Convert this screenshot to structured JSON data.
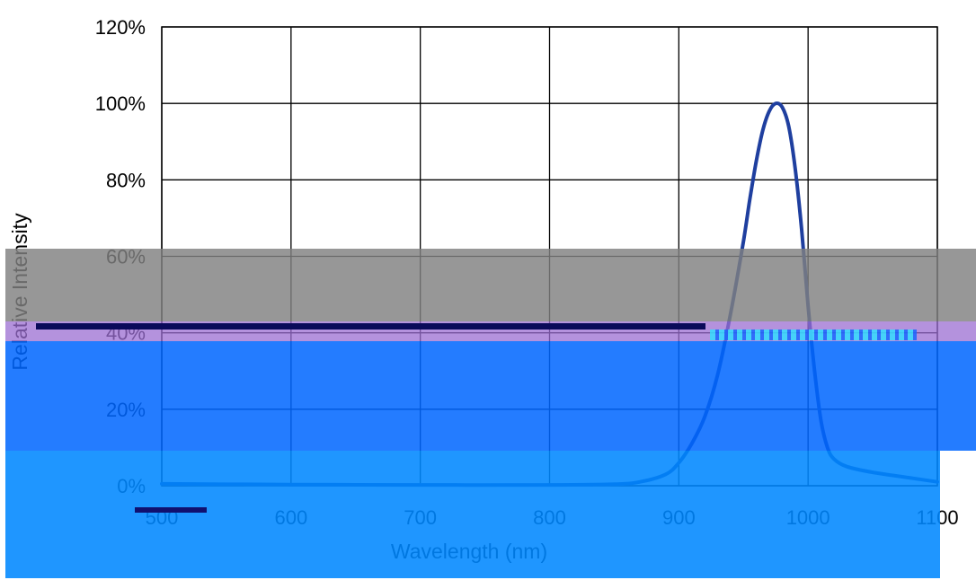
{
  "chart_data": {
    "type": "line",
    "title": "",
    "xlabel": "Wavelength (nm)",
    "ylabel": "Relative Intensity",
    "xlim": [
      500,
      1100
    ],
    "ylim": [
      0,
      1.2
    ],
    "x_ticks": [
      500,
      600,
      700,
      800,
      900,
      1000,
      1100
    ],
    "x_tick_labels": [
      "500",
      "600",
      "700",
      "800",
      "900",
      "1000",
      "1100"
    ],
    "y_ticks": [
      0,
      0.2,
      0.4,
      0.6,
      0.8,
      1.0,
      1.2
    ],
    "y_tick_labels": [
      "0%",
      "20%",
      "40%",
      "60%",
      "80%",
      "100%",
      "120%"
    ],
    "grid": true,
    "legend": "none",
    "line_color": "#1f3f9f",
    "series": [
      {
        "x": [
          500,
          600,
          700,
          800,
          850,
          870,
          890,
          900,
          910,
          920,
          930,
          940,
          950,
          955,
          960,
          965,
          970,
          975,
          980,
          985,
          990,
          995,
          1000,
          1005,
          1010,
          1015,
          1020,
          1030,
          1050,
          1080,
          1100
        ],
        "values": [
          0.005,
          0.003,
          0.002,
          0.002,
          0.004,
          0.01,
          0.03,
          0.06,
          0.11,
          0.18,
          0.29,
          0.45,
          0.64,
          0.75,
          0.85,
          0.93,
          0.98,
          1.0,
          0.99,
          0.94,
          0.83,
          0.67,
          0.47,
          0.3,
          0.17,
          0.1,
          0.07,
          0.05,
          0.035,
          0.02,
          0.01
        ]
      }
    ]
  }
}
